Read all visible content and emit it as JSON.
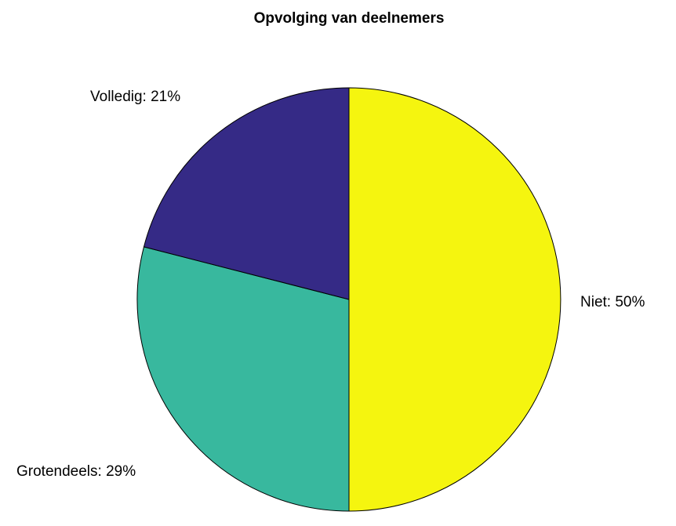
{
  "chart_data": {
    "type": "pie",
    "title": "Opvolging van deelnemers",
    "slices": [
      {
        "name": "Niet",
        "value": 50,
        "label": "Niet: 50%",
        "color": "#f5f50f"
      },
      {
        "name": "Grotendeels",
        "value": 29,
        "label": "Grotendeels: 29%",
        "color": "#38b89e"
      },
      {
        "name": "Volledig",
        "value": 21,
        "label": "Volledig: 21%",
        "color": "#352a86"
      }
    ],
    "direction": "clockwise from top",
    "legend": "none",
    "grid": false
  }
}
